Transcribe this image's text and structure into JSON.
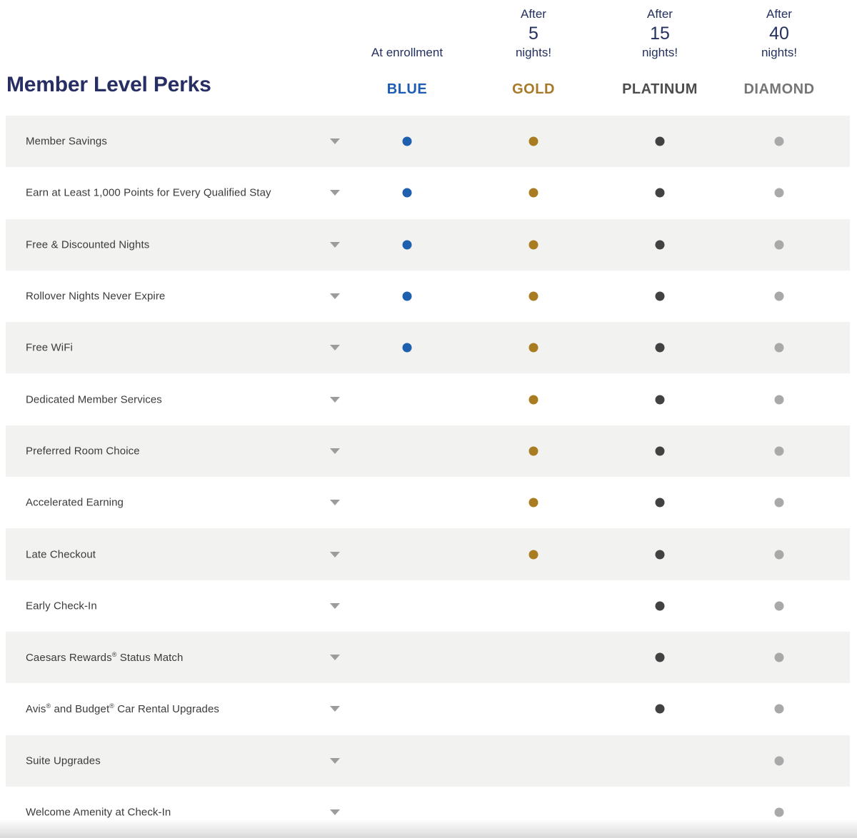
{
  "header": {
    "title": "Member Level Perks",
    "tiers": [
      {
        "id": "blue",
        "name": "BLUE",
        "qualifier_top": "",
        "qualifier_count": "",
        "qualifier_bottom": "At enrollment",
        "name_color": "#1e5cb3",
        "dot_color": "#1e5fae"
      },
      {
        "id": "gold",
        "name": "GOLD",
        "qualifier_top": "After",
        "qualifier_count": "5",
        "qualifier_bottom": "nights!",
        "name_color": "#a67a26",
        "dot_color": "#aa7c22"
      },
      {
        "id": "platinum",
        "name": "PLATINUM",
        "qualifier_top": "After",
        "qualifier_count": "15",
        "qualifier_bottom": "nights!",
        "name_color": "#4d4d4d",
        "dot_color": "#424242"
      },
      {
        "id": "diamond",
        "name": "DIAMOND",
        "qualifier_top": "After",
        "qualifier_count": "40",
        "qualifier_bottom": "nights!",
        "name_color": "#757575",
        "dot_color": "#a9a9a9"
      }
    ]
  },
  "rows": [
    {
      "label": "Member Savings",
      "tiers": [
        "blue",
        "gold",
        "platinum",
        "diamond"
      ]
    },
    {
      "label": "Earn at Least 1,000 Points for Every Qualified Stay",
      "tiers": [
        "blue",
        "gold",
        "platinum",
        "diamond"
      ]
    },
    {
      "label": "Free & Discounted Nights",
      "tiers": [
        "blue",
        "gold",
        "platinum",
        "diamond"
      ]
    },
    {
      "label": "Rollover Nights Never Expire",
      "tiers": [
        "blue",
        "gold",
        "platinum",
        "diamond"
      ]
    },
    {
      "label": "Free WiFi",
      "tiers": [
        "blue",
        "gold",
        "platinum",
        "diamond"
      ]
    },
    {
      "label": "Dedicated Member Services",
      "tiers": [
        "gold",
        "platinum",
        "diamond"
      ]
    },
    {
      "label": "Preferred Room Choice",
      "tiers": [
        "gold",
        "platinum",
        "diamond"
      ]
    },
    {
      "label": "Accelerated Earning",
      "tiers": [
        "gold",
        "platinum",
        "diamond"
      ]
    },
    {
      "label": "Late Checkout",
      "tiers": [
        "gold",
        "platinum",
        "diamond"
      ]
    },
    {
      "label": "Early Check-In",
      "tiers": [
        "platinum",
        "diamond"
      ]
    },
    {
      "label": "Caesars Rewards® Status Match",
      "tiers": [
        "platinum",
        "diamond"
      ]
    },
    {
      "label": "Avis® and Budget® Car Rental Upgrades",
      "tiers": [
        "platinum",
        "diamond"
      ]
    },
    {
      "label": "Suite Upgrades",
      "tiers": [
        "diamond"
      ]
    },
    {
      "label": "Welcome Amenity at Check-In",
      "tiers": [
        "diamond"
      ]
    }
  ],
  "colors": {
    "title": "#272e63",
    "header_text": "#24305e",
    "row_alt_bg": "#f2f2f1",
    "row_bg": "#ffffff",
    "label": "#3b3b3b",
    "chevron": "#9c9c9c"
  },
  "icons": {
    "row_expander": "chevron-down-icon",
    "availability_marker": "tier-dot"
  }
}
